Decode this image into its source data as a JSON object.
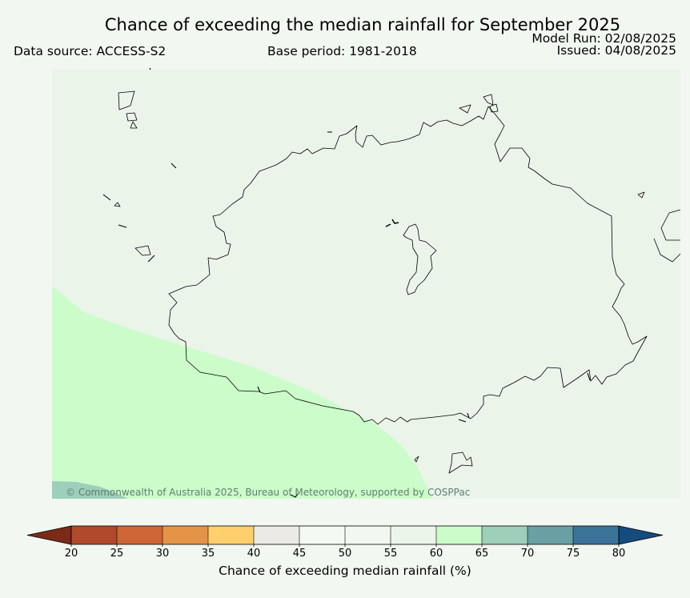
{
  "header": {
    "title": "Chance of exceeding the median rainfall for September 2025",
    "data_source": "Data source: ACCESS-S2",
    "base_period": "Base period: 1981-2018",
    "model_run": "Model Run: 02/08/2025",
    "issued": "Issued: 04/08/2025"
  },
  "map": {
    "copyright": "© Commonwealth of Australia 2025, Bureau of Meteorology, supported by COSPPac",
    "colors": {
      "background": "#eaf4e9",
      "band_60_65": "#ccfcca",
      "band_65_70": "#9dcfbb",
      "coastline": "#000000"
    }
  },
  "colorbar": {
    "label": "Chance of exceeding median rainfall (%)",
    "ticks": [
      "20",
      "25",
      "30",
      "35",
      "40",
      "45",
      "50",
      "55",
      "60",
      "65",
      "70",
      "75",
      "80"
    ],
    "colors": [
      "#7b2b18",
      "#b04a2a",
      "#cf6638",
      "#e59447",
      "#fecf6a",
      "#ebeae6",
      "#f4f9f3",
      "#f2f7f0",
      "#ebf5e9",
      "#ccfcca",
      "#9dcfbb",
      "#68a0a3",
      "#3b7399",
      "#154c7e"
    ],
    "extend": "both"
  }
}
